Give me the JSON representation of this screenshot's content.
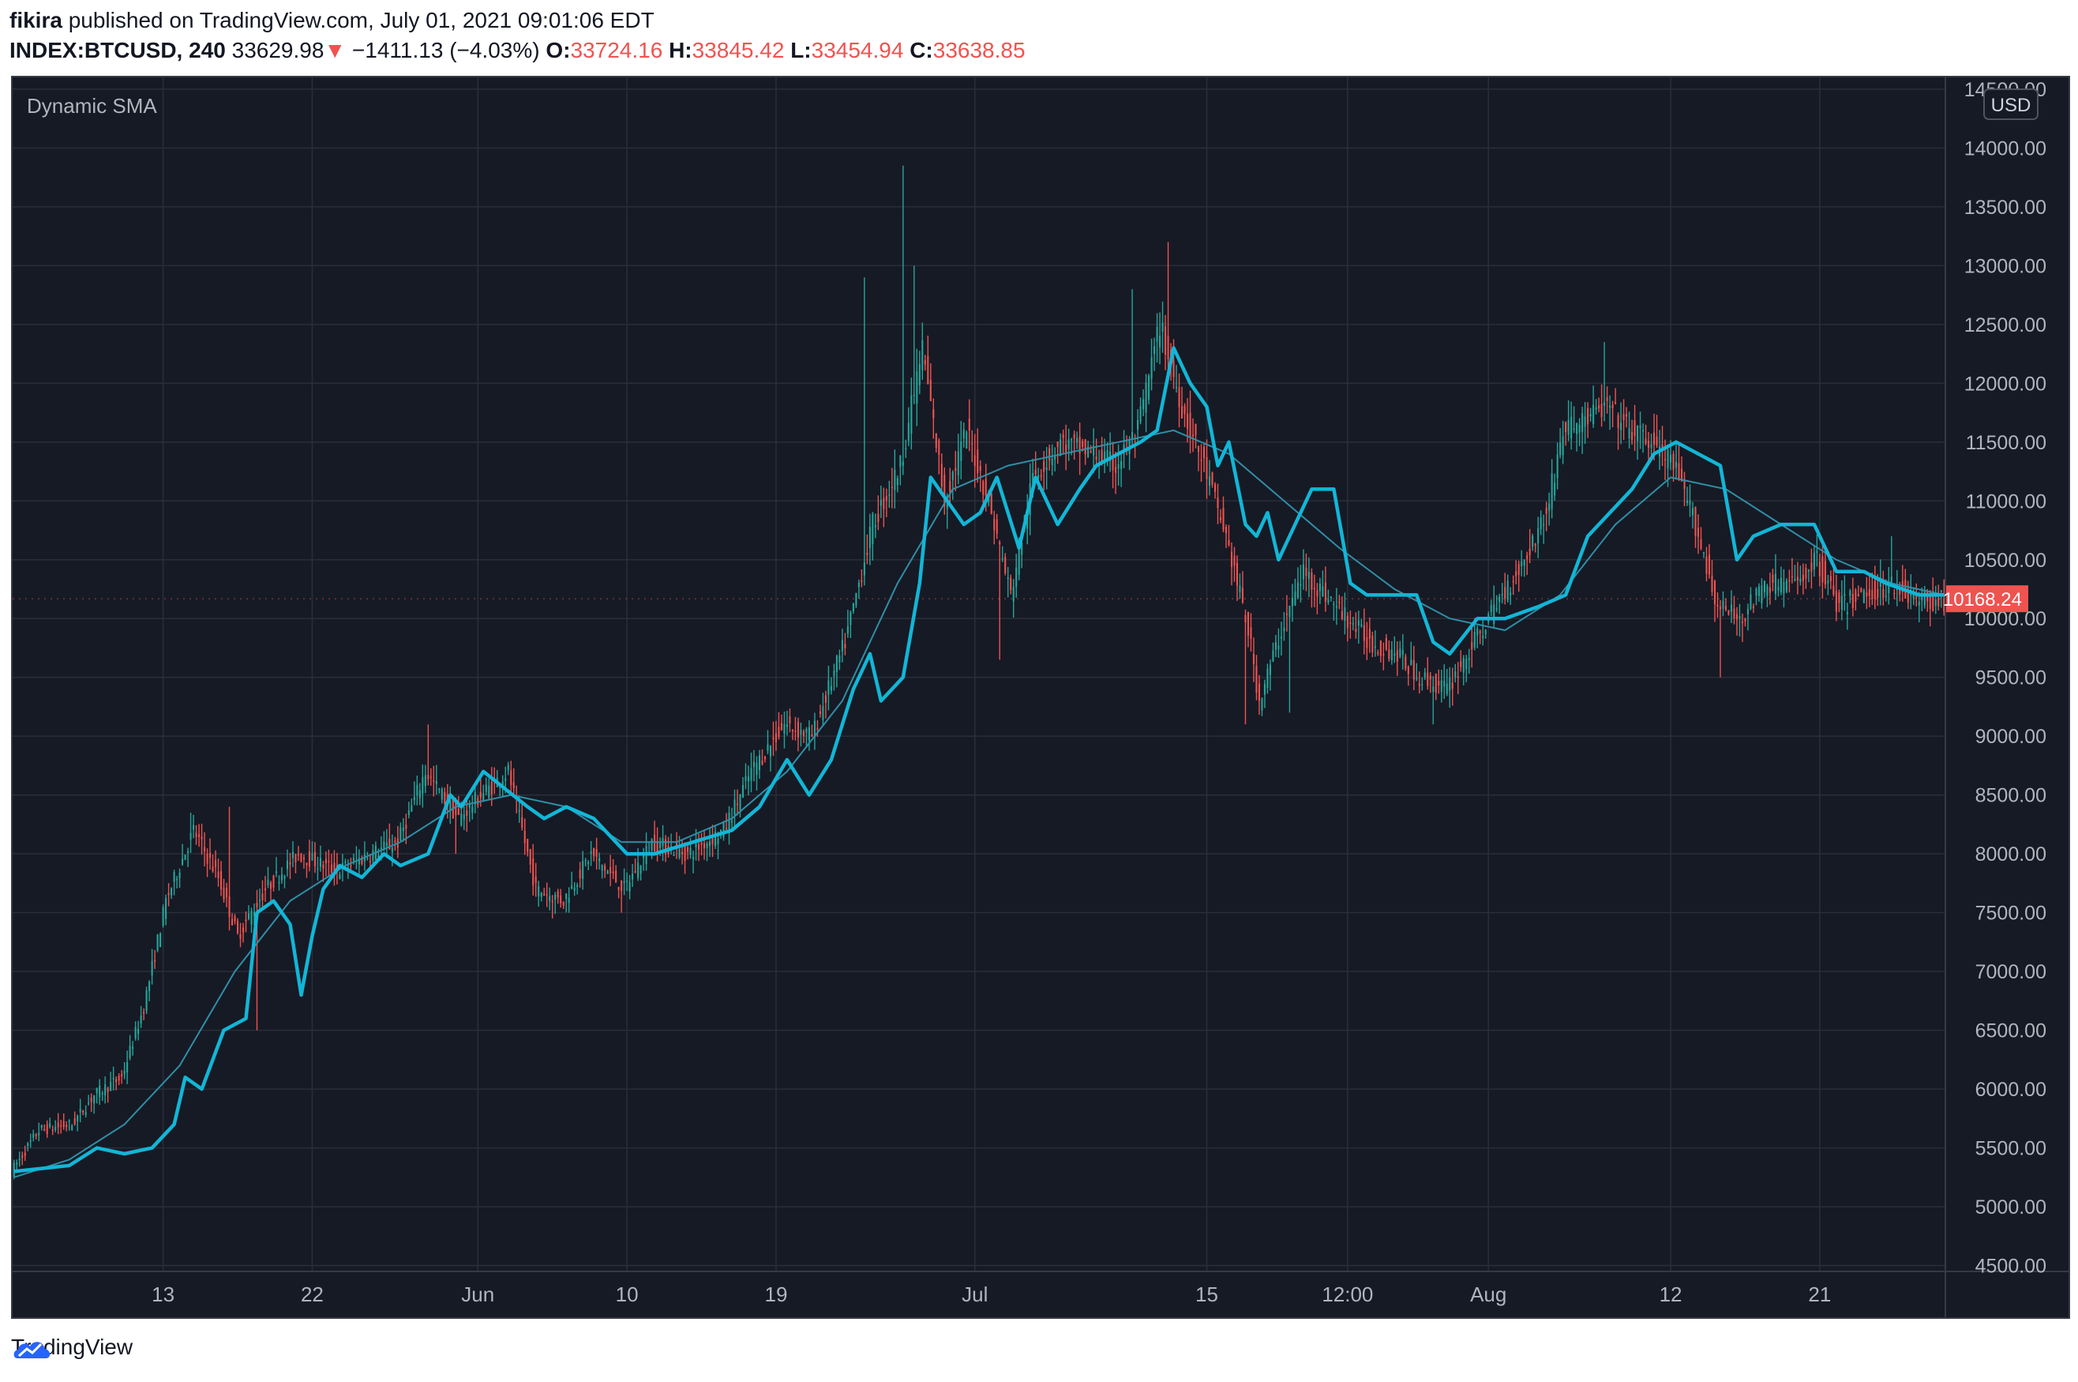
{
  "header": {
    "author": "fikira",
    "published_text": "published on TradingView.com, July 01, 2021 09:01:06 EDT",
    "symbol": "INDEX:BTCUSD, 240",
    "last": "33629.98",
    "change_arrow": "▼",
    "change": "−1411.13 (−4.03%)",
    "o_label": "O:",
    "o_value": "33724.16",
    "h_label": "H:",
    "h_value": "33845.42",
    "l_label": "L:",
    "l_value": "33454.94",
    "c_label": "C:",
    "c_value": "33638.85"
  },
  "footer": {
    "brand": "TradingView",
    "logo_icon": "tradingview-cloud-icon"
  },
  "colors": {
    "background": "#161a25",
    "grid": "#2a2e39",
    "up": "#26a69a",
    "down": "#ef5350",
    "dynamic_sma": "#12b6d6",
    "slow_sma": "#2f8fa6",
    "axis_text": "#b2b5be",
    "price_tag": "#ef5350"
  },
  "chart_data": {
    "type": "candlestick",
    "indicator_label": "Dynamic SMA",
    "currency": "USD",
    "last_price_label": "10168.24",
    "last_price": 10168.24,
    "grid": true,
    "ylim": [
      4450,
      14600
    ],
    "y_ticks": [
      "4500.00",
      "5000.00",
      "5500.00",
      "6000.00",
      "6500.00",
      "7000.00",
      "7500.00",
      "8000.00",
      "8500.00",
      "9000.00",
      "9500.00",
      "10000.00",
      "10500.00",
      "11000.00",
      "11500.00",
      "12000.00",
      "12500.00",
      "13000.00",
      "13500.00",
      "14000.00",
      "14500.00"
    ],
    "x_ticks": [
      {
        "label": "13",
        "bar": 54
      },
      {
        "label": "22",
        "bar": 108
      },
      {
        "label": "Jun",
        "bar": 168
      },
      {
        "label": "10",
        "bar": 222
      },
      {
        "label": "19",
        "bar": 276
      },
      {
        "label": "Jul",
        "bar": 348
      },
      {
        "label": "15",
        "bar": 432
      },
      {
        "label": "12:00",
        "bar": 483
      },
      {
        "label": "Aug",
        "bar": 534
      },
      {
        "label": "12",
        "bar": 600
      },
      {
        "label": "21",
        "bar": 654
      }
    ],
    "bar_count": 700,
    "price_path": [
      [
        0,
        5300
      ],
      [
        10,
        5650
      ],
      [
        22,
        5700
      ],
      [
        30,
        5950
      ],
      [
        40,
        6100
      ],
      [
        48,
        6700
      ],
      [
        56,
        7600
      ],
      [
        66,
        8200
      ],
      [
        75,
        7800
      ],
      [
        82,
        7300
      ],
      [
        92,
        7700
      ],
      [
        104,
        8000
      ],
      [
        118,
        7850
      ],
      [
        130,
        8000
      ],
      [
        140,
        8100
      ],
      [
        150,
        8700
      ],
      [
        162,
        8300
      ],
      [
        170,
        8500
      ],
      [
        180,
        8700
      ],
      [
        190,
        7700
      ],
      [
        200,
        7600
      ],
      [
        210,
        8000
      ],
      [
        222,
        7700
      ],
      [
        232,
        8100
      ],
      [
        245,
        8000
      ],
      [
        258,
        8200
      ],
      [
        268,
        8700
      ],
      [
        280,
        9100
      ],
      [
        290,
        9000
      ],
      [
        302,
        9800
      ],
      [
        312,
        10800
      ],
      [
        322,
        11300
      ],
      [
        330,
        12300
      ],
      [
        338,
        11000
      ],
      [
        346,
        11600
      ],
      [
        354,
        11000
      ],
      [
        362,
        10200
      ],
      [
        370,
        11200
      ],
      [
        380,
        11500
      ],
      [
        392,
        11400
      ],
      [
        400,
        11300
      ],
      [
        408,
        11600
      ],
      [
        416,
        12500
      ],
      [
        424,
        11800
      ],
      [
        432,
        11300
      ],
      [
        440,
        10700
      ],
      [
        448,
        9900
      ],
      [
        452,
        9300
      ],
      [
        460,
        9900
      ],
      [
        468,
        10400
      ],
      [
        480,
        10100
      ],
      [
        492,
        9800
      ],
      [
        502,
        9700
      ],
      [
        510,
        9500
      ],
      [
        520,
        9400
      ],
      [
        530,
        9800
      ],
      [
        540,
        10200
      ],
      [
        548,
        10500
      ],
      [
        556,
        10900
      ],
      [
        562,
        11600
      ],
      [
        570,
        11700
      ],
      [
        578,
        11800
      ],
      [
        586,
        11600
      ],
      [
        594,
        11500
      ],
      [
        602,
        11300
      ],
      [
        610,
        10800
      ],
      [
        618,
        10100
      ],
      [
        626,
        10000
      ],
      [
        636,
        10300
      ],
      [
        646,
        10300
      ],
      [
        654,
        10500
      ],
      [
        662,
        10100
      ],
      [
        670,
        10200
      ],
      [
        682,
        10300
      ],
      [
        690,
        10150
      ],
      [
        699,
        10150
      ]
    ],
    "spikes": [
      {
        "bar": 64,
        "high": 8350
      },
      {
        "bar": 78,
        "high": 8400
      },
      {
        "bar": 88,
        "low": 6500
      },
      {
        "bar": 150,
        "high": 9100
      },
      {
        "bar": 160,
        "low": 8000
      },
      {
        "bar": 195,
        "low": 7450
      },
      {
        "bar": 220,
        "low": 7500
      },
      {
        "bar": 308,
        "high": 12900
      },
      {
        "bar": 322,
        "high": 13850
      },
      {
        "bar": 326,
        "high": 13000
      },
      {
        "bar": 357,
        "low": 9650
      },
      {
        "bar": 405,
        "high": 12800
      },
      {
        "bar": 418,
        "high": 13200
      },
      {
        "bar": 446,
        "low": 9100
      },
      {
        "bar": 462,
        "low": 9200
      },
      {
        "bar": 514,
        "low": 9100
      },
      {
        "bar": 576,
        "high": 12350
      },
      {
        "bar": 618,
        "low": 9500
      },
      {
        "bar": 680,
        "high": 10700
      }
    ],
    "dynamic_sma_path": [
      [
        0,
        5300
      ],
      [
        20,
        5350
      ],
      [
        30,
        5500
      ],
      [
        40,
        5450
      ],
      [
        50,
        5500
      ],
      [
        58,
        5700
      ],
      [
        62,
        6100
      ],
      [
        68,
        6000
      ],
      [
        76,
        6500
      ],
      [
        84,
        6600
      ],
      [
        88,
        7500
      ],
      [
        94,
        7600
      ],
      [
        100,
        7400
      ],
      [
        104,
        6800
      ],
      [
        108,
        7300
      ],
      [
        112,
        7700
      ],
      [
        118,
        7900
      ],
      [
        126,
        7800
      ],
      [
        134,
        8000
      ],
      [
        140,
        7900
      ],
      [
        150,
        8000
      ],
      [
        158,
        8500
      ],
      [
        162,
        8400
      ],
      [
        170,
        8700
      ],
      [
        178,
        8550
      ],
      [
        186,
        8400
      ],
      [
        192,
        8300
      ],
      [
        200,
        8400
      ],
      [
        210,
        8300
      ],
      [
        222,
        8000
      ],
      [
        232,
        8000
      ],
      [
        246,
        8100
      ],
      [
        260,
        8200
      ],
      [
        270,
        8400
      ],
      [
        280,
        8800
      ],
      [
        288,
        8500
      ],
      [
        296,
        8800
      ],
      [
        304,
        9400
      ],
      [
        310,
        9700
      ],
      [
        314,
        9300
      ],
      [
        322,
        9500
      ],
      [
        328,
        10300
      ],
      [
        332,
        11200
      ],
      [
        338,
        11000
      ],
      [
        344,
        10800
      ],
      [
        350,
        10900
      ],
      [
        356,
        11200
      ],
      [
        364,
        10600
      ],
      [
        370,
        11200
      ],
      [
        378,
        10800
      ],
      [
        386,
        11100
      ],
      [
        392,
        11300
      ],
      [
        400,
        11400
      ],
      [
        408,
        11500
      ],
      [
        414,
        11600
      ],
      [
        420,
        12300
      ],
      [
        426,
        12000
      ],
      [
        432,
        11800
      ],
      [
        436,
        11300
      ],
      [
        440,
        11500
      ],
      [
        446,
        10800
      ],
      [
        450,
        10700
      ],
      [
        454,
        10900
      ],
      [
        458,
        10500
      ],
      [
        464,
        10800
      ],
      [
        470,
        11100
      ],
      [
        478,
        11100
      ],
      [
        484,
        10300
      ],
      [
        490,
        10200
      ],
      [
        498,
        10200
      ],
      [
        508,
        10200
      ],
      [
        514,
        9800
      ],
      [
        520,
        9700
      ],
      [
        530,
        10000
      ],
      [
        540,
        10000
      ],
      [
        552,
        10100
      ],
      [
        562,
        10200
      ],
      [
        570,
        10700
      ],
      [
        578,
        10900
      ],
      [
        586,
        11100
      ],
      [
        594,
        11400
      ],
      [
        602,
        11500
      ],
      [
        610,
        11400
      ],
      [
        618,
        11300
      ],
      [
        624,
        10500
      ],
      [
        630,
        10700
      ],
      [
        640,
        10800
      ],
      [
        652,
        10800
      ],
      [
        660,
        10400
      ],
      [
        670,
        10400
      ],
      [
        678,
        10300
      ],
      [
        690,
        10200
      ],
      [
        699,
        10200
      ]
    ],
    "slow_sma_path": [
      [
        0,
        5250
      ],
      [
        20,
        5400
      ],
      [
        40,
        5700
      ],
      [
        60,
        6200
      ],
      [
        80,
        7000
      ],
      [
        100,
        7600
      ],
      [
        120,
        7900
      ],
      [
        140,
        8100
      ],
      [
        160,
        8400
      ],
      [
        180,
        8500
      ],
      [
        200,
        8400
      ],
      [
        220,
        8100
      ],
      [
        240,
        8100
      ],
      [
        260,
        8300
      ],
      [
        280,
        8700
      ],
      [
        300,
        9300
      ],
      [
        320,
        10300
      ],
      [
        340,
        11100
      ],
      [
        360,
        11300
      ],
      [
        380,
        11400
      ],
      [
        400,
        11500
      ],
      [
        420,
        11600
      ],
      [
        440,
        11400
      ],
      [
        460,
        11000
      ],
      [
        480,
        10600
      ],
      [
        500,
        10250
      ],
      [
        520,
        10000
      ],
      [
        540,
        9900
      ],
      [
        560,
        10200
      ],
      [
        580,
        10800
      ],
      [
        600,
        11200
      ],
      [
        620,
        11100
      ],
      [
        640,
        10800
      ],
      [
        660,
        10500
      ],
      [
        680,
        10300
      ],
      [
        699,
        10200
      ]
    ]
  }
}
